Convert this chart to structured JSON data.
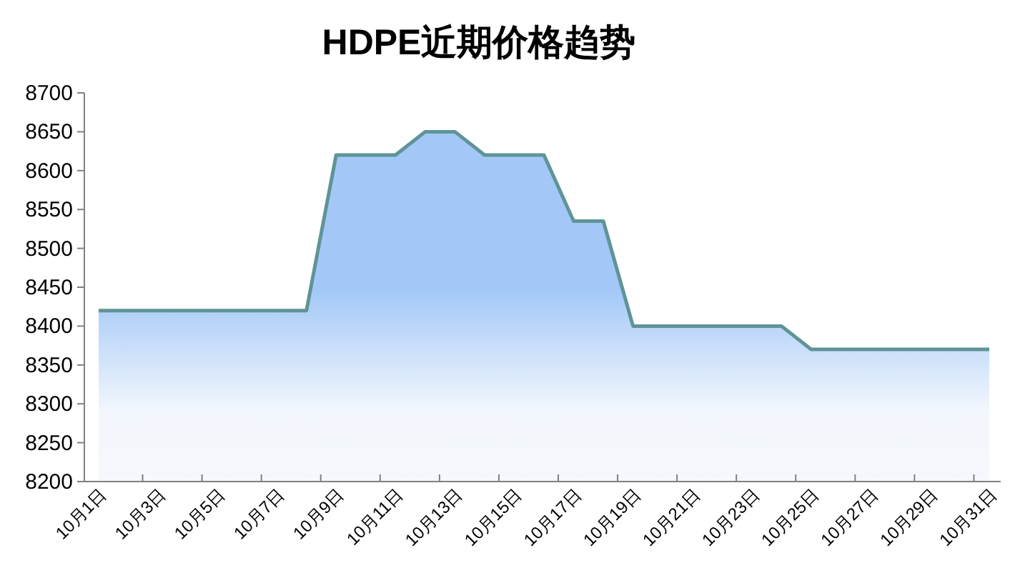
{
  "chart_data": {
    "type": "area",
    "title": "HDPE近期价格趋势",
    "categories": [
      "10月1日",
      null,
      "10月3日",
      null,
      "10月5日",
      null,
      "10月7日",
      null,
      "10月9日",
      null,
      "10月11日",
      null,
      "10月13日",
      null,
      "10月15日",
      null,
      "10月17日",
      null,
      "10月19日",
      null,
      "10月21日",
      null,
      "10月23日",
      null,
      "10月25日",
      null,
      "10月27日",
      null,
      "10月29日",
      null,
      "10月31日"
    ],
    "values": [
      8420,
      8420,
      8420,
      8420,
      8420,
      8420,
      8420,
      8420,
      8620,
      8620,
      8620,
      8650,
      8650,
      8620,
      8620,
      8620,
      8535,
      8535,
      8400,
      8400,
      8400,
      8400,
      8400,
      8400,
      8370,
      8370,
      8370,
      8370,
      8370,
      8370,
      8370
    ],
    "color": "#5f9497",
    "ylim": [
      8200,
      8700
    ],
    "yticks": [
      8200,
      8250,
      8300,
      8350,
      8400,
      8450,
      8500,
      8550,
      8600,
      8650,
      8700
    ],
    "grid": false,
    "marker": "none"
  }
}
